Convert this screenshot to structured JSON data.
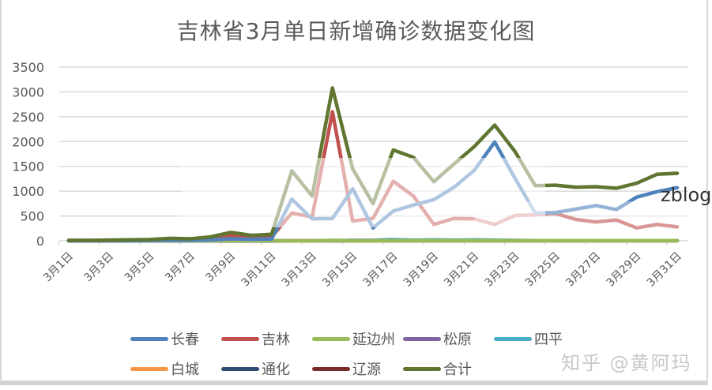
{
  "chart_data": {
    "type": "line",
    "title": "吉林省3月单日新增确诊数据变化图",
    "xlabel": "",
    "ylabel": "",
    "ylim": [
      0,
      3500
    ],
    "yticks": [
      0,
      500,
      1000,
      1500,
      2000,
      2500,
      3000,
      3500
    ],
    "grid": true,
    "legend_position": "bottom",
    "x": [
      "3月1日",
      "3月2日",
      "3月3日",
      "3月4日",
      "3月5日",
      "3月6日",
      "3月7日",
      "3月8日",
      "3月9日",
      "3月10日",
      "3月11日",
      "3月12日",
      "3月13日",
      "3月14日",
      "3月15日",
      "3月16日",
      "3月17日",
      "3月18日",
      "3月19日",
      "3月20日",
      "3月21日",
      "3月22日",
      "3月23日",
      "3月24日",
      "3月25日",
      "3月26日",
      "3月27日",
      "3月28日",
      "3月29日",
      "3月30日",
      "3月31日"
    ],
    "xtick_labels": [
      "3月1日",
      "3月3日",
      "3月5日",
      "3月7日",
      "3月9日",
      "3月11日",
      "3月13日",
      "3月15日",
      "3月17日",
      "3月19日",
      "3月21日",
      "3月23日",
      "3月25日",
      "3月27日",
      "3月29日",
      "3月31日"
    ],
    "series": [
      {
        "name": "长春",
        "color": "#4f81bd",
        "values": [
          2,
          2,
          3,
          5,
          8,
          12,
          10,
          20,
          40,
          30,
          35,
          840,
          440,
          450,
          1050,
          260,
          600,
          720,
          830,
          1080,
          1420,
          1990,
          1260,
          560,
          570,
          640,
          710,
          630,
          880,
          990,
          1070
        ]
      },
      {
        "name": "吉林",
        "color": "#c0504d",
        "values": [
          5,
          5,
          8,
          10,
          15,
          30,
          25,
          50,
          110,
          70,
          80,
          560,
          480,
          2600,
          400,
          450,
          1200,
          900,
          330,
          450,
          440,
          330,
          510,
          520,
          550,
          430,
          380,
          420,
          260,
          330,
          280
        ]
      },
      {
        "name": "延边州",
        "color": "#9bbb59",
        "values": [
          0,
          0,
          0,
          0,
          0,
          2,
          2,
          3,
          5,
          3,
          5,
          0,
          0,
          10,
          0,
          0,
          5,
          5,
          5,
          5,
          5,
          5,
          5,
          5,
          5,
          5,
          3,
          3,
          3,
          3,
          3
        ]
      },
      {
        "name": "松原",
        "color": "#8064a2",
        "values": [
          0,
          0,
          0,
          0,
          0,
          0,
          0,
          0,
          0,
          0,
          0,
          5,
          5,
          5,
          5,
          5,
          5,
          5,
          5,
          5,
          5,
          5,
          5,
          5,
          5,
          5,
          5,
          5,
          5,
          5,
          5
        ]
      },
      {
        "name": "四平",
        "color": "#4bacc6",
        "values": [
          0,
          0,
          0,
          0,
          0,
          0,
          0,
          0,
          0,
          0,
          0,
          5,
          5,
          5,
          10,
          10,
          25,
          15,
          20,
          15,
          20,
          15,
          10,
          5,
          5,
          5,
          5,
          5,
          5,
          5,
          5
        ]
      },
      {
        "name": "白城",
        "color": "#f79646",
        "values": [
          0,
          0,
          0,
          0,
          0,
          0,
          0,
          0,
          0,
          0,
          0,
          2,
          2,
          2,
          2,
          2,
          2,
          2,
          2,
          2,
          2,
          2,
          2,
          2,
          2,
          2,
          2,
          2,
          2,
          2,
          2
        ]
      },
      {
        "name": "通化",
        "color": "#2c4d75",
        "values": [
          0,
          0,
          0,
          0,
          0,
          0,
          0,
          0,
          0,
          0,
          0,
          2,
          2,
          2,
          2,
          2,
          2,
          2,
          2,
          2,
          2,
          2,
          2,
          2,
          2,
          2,
          2,
          2,
          2,
          2,
          2
        ]
      },
      {
        "name": "辽源",
        "color": "#772c2a",
        "values": [
          0,
          0,
          0,
          0,
          0,
          0,
          0,
          0,
          0,
          0,
          0,
          2,
          2,
          2,
          2,
          2,
          2,
          2,
          2,
          2,
          2,
          2,
          2,
          2,
          2,
          2,
          2,
          2,
          2,
          2,
          2
        ]
      },
      {
        "name": "合计",
        "color": "#5f7530",
        "values": [
          10,
          10,
          15,
          20,
          25,
          50,
          40,
          80,
          170,
          110,
          130,
          1410,
          900,
          3080,
          1450,
          750,
          1830,
          1680,
          1190,
          1550,
          1900,
          2330,
          1800,
          1110,
          1120,
          1080,
          1090,
          1060,
          1160,
          1340,
          1360
        ]
      }
    ]
  },
  "legend": {
    "row1": [
      {
        "label": "长春",
        "color": "#4f81bd"
      },
      {
        "label": "吉林",
        "color": "#c0504d"
      },
      {
        "label": "延边州",
        "color": "#9bbb59"
      },
      {
        "label": "松原",
        "color": "#8064a2"
      },
      {
        "label": "四平",
        "color": "#4bacc6"
      }
    ],
    "row2": [
      {
        "label": "白城",
        "color": "#f79646"
      },
      {
        "label": "通化",
        "color": "#2c4d75"
      },
      {
        "label": "辽源",
        "color": "#772c2a"
      },
      {
        "label": "合计",
        "color": "#5f7530"
      }
    ]
  },
  "overlays": {
    "watermark": "知乎 @黄阿玛",
    "side_text": "zblog"
  }
}
